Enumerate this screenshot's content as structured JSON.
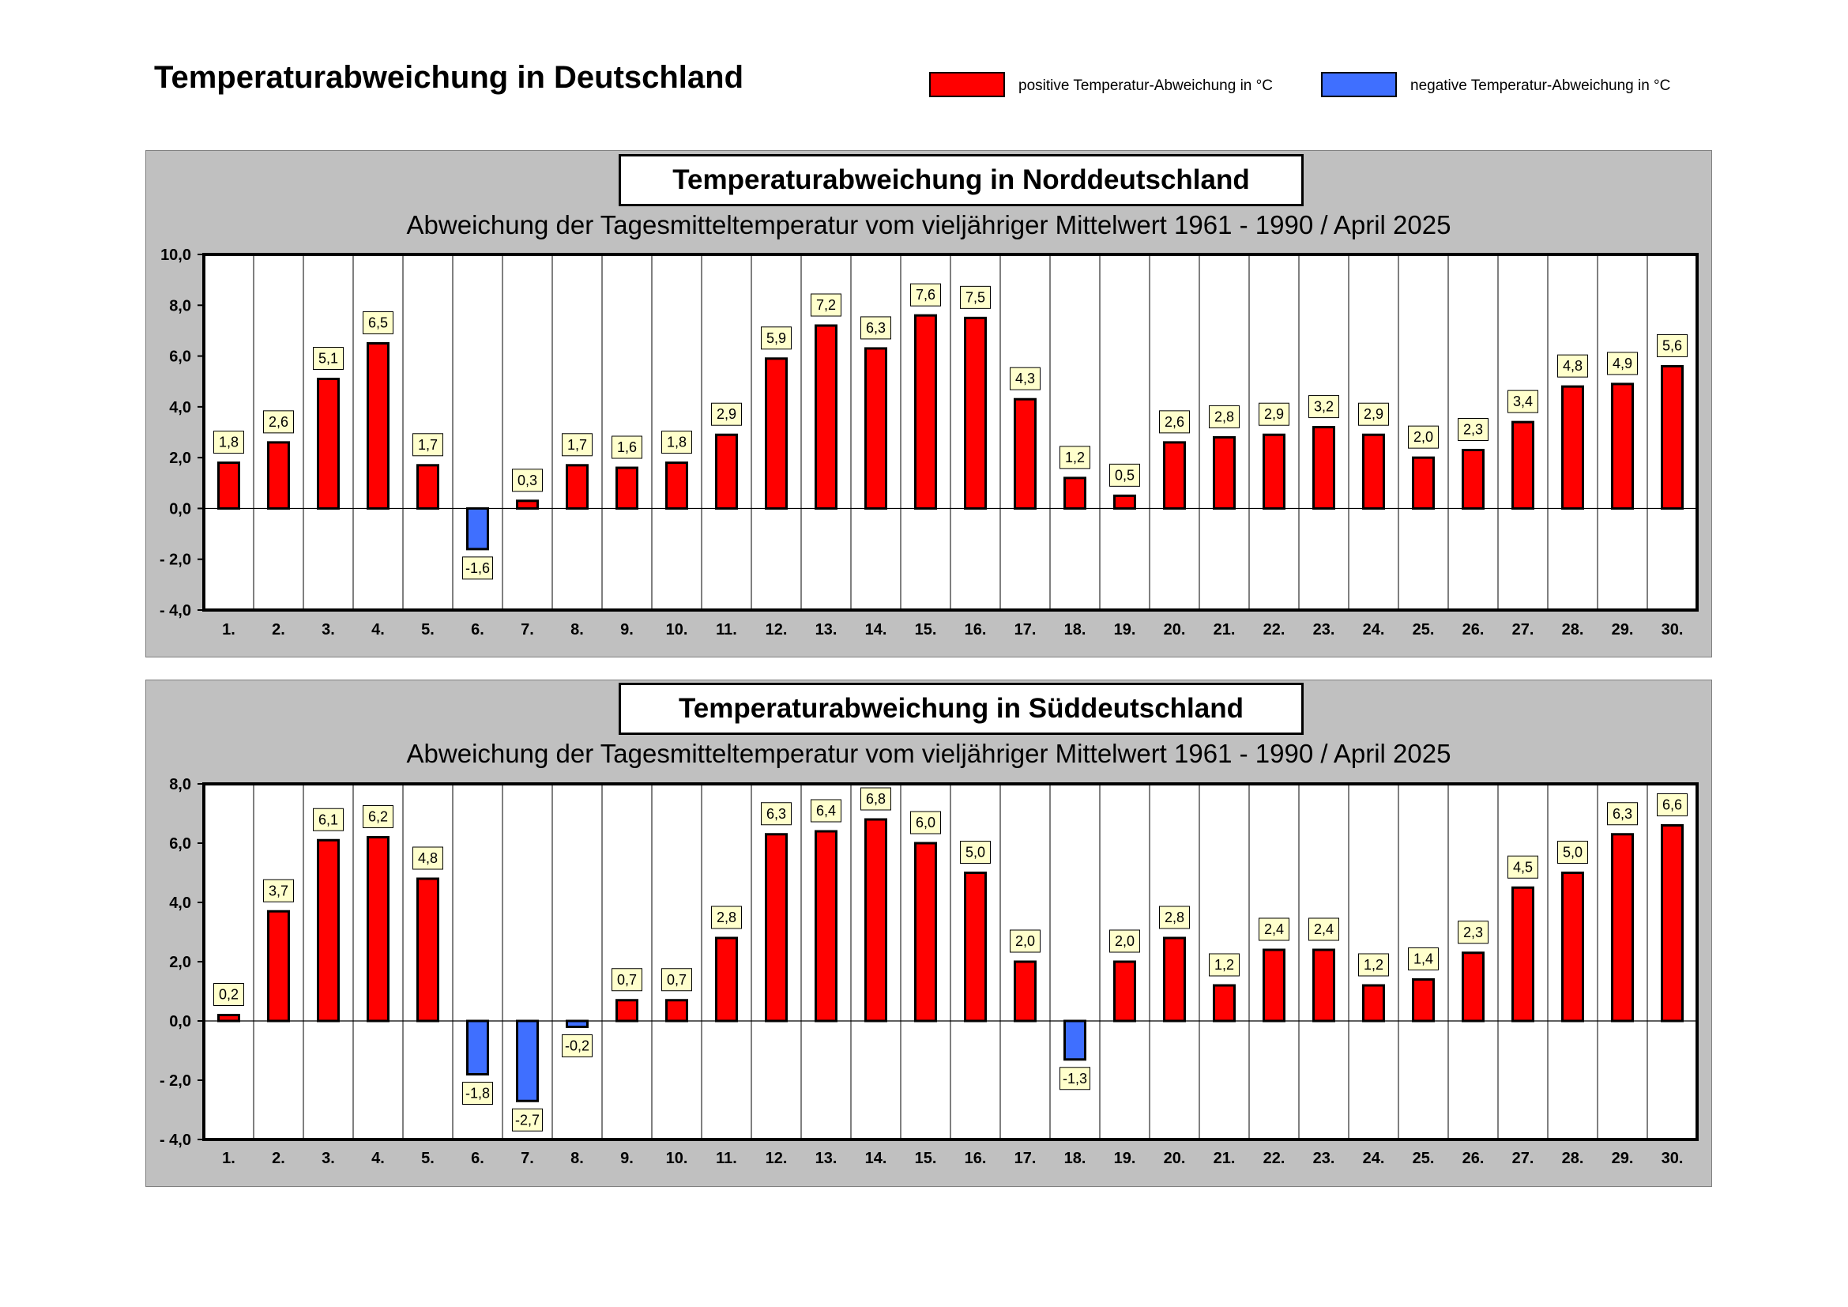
{
  "title": "Temperaturabweichung in Deutschland",
  "legend": {
    "positive_label": "positive Temperatur-Abweichung in °C",
    "negative_label": "negative Temperatur-Abweichung in °C",
    "positive_color": "#ff0000",
    "negative_color": "#3f6fff"
  },
  "chart_data": [
    {
      "type": "bar",
      "title": "Temperaturabweichung in Norddeutschland",
      "subtitle": "Abweichung der Tagesmitteltemperatur vom vieljähriger Mittelwert 1961 - 1990  /  April 2025",
      "categories": [
        "1.",
        "2.",
        "3.",
        "4.",
        "5.",
        "6.",
        "7.",
        "8.",
        "9.",
        "10.",
        "11.",
        "12.",
        "13.",
        "14.",
        "15.",
        "16.",
        "17.",
        "18.",
        "19.",
        "20.",
        "21.",
        "22.",
        "23.",
        "24.",
        "25.",
        "26.",
        "27.",
        "28.",
        "29.",
        "30."
      ],
      "values": [
        1.8,
        2.6,
        5.1,
        6.5,
        1.7,
        -1.6,
        0.3,
        1.7,
        1.6,
        1.8,
        2.9,
        5.9,
        7.2,
        6.3,
        7.6,
        7.5,
        4.3,
        1.2,
        0.5,
        2.6,
        2.8,
        2.9,
        3.2,
        2.9,
        2.0,
        2.3,
        3.4,
        4.8,
        4.9,
        5.6
      ],
      "value_labels": [
        "1,8",
        "2,6",
        "5,1",
        "6,5",
        "1,7",
        "-1,6",
        "0,3",
        "1,7",
        "1,6",
        "1,8",
        "2,9",
        "5,9",
        "7,2",
        "6,3",
        "7,6",
        "7,5",
        "4,3",
        "1,2",
        "0,5",
        "2,6",
        "2,8",
        "2,9",
        "3,2",
        "2,9",
        "2,0",
        "2,3",
        "3,4",
        "4,8",
        "4,9",
        "5,6"
      ],
      "ylim": [
        -4,
        10
      ],
      "yticks": [
        10,
        8,
        6,
        4,
        2,
        0,
        -2,
        -4
      ],
      "ytick_labels": [
        "10,0",
        "8,0",
        "6,0",
        "4,0",
        "2,0",
        "0,0",
        "- 2,0",
        "- 4,0"
      ],
      "xlabel": "",
      "ylabel": "",
      "grid": "vertical separators"
    },
    {
      "type": "bar",
      "title": "Temperaturabweichung in Süddeutschland",
      "subtitle": "Abweichung der Tagesmitteltemperatur vom vieljähriger Mittelwert 1961 - 1990  /  April 2025",
      "categories": [
        "1.",
        "2.",
        "3.",
        "4.",
        "5.",
        "6.",
        "7.",
        "8.",
        "9.",
        "10.",
        "11.",
        "12.",
        "13.",
        "14.",
        "15.",
        "16.",
        "17.",
        "18.",
        "19.",
        "20.",
        "21.",
        "22.",
        "23.",
        "24.",
        "25.",
        "26.",
        "27.",
        "28.",
        "29.",
        "30."
      ],
      "values": [
        0.2,
        3.7,
        6.1,
        6.2,
        4.8,
        -1.8,
        -2.7,
        -0.2,
        0.7,
        0.7,
        2.8,
        6.3,
        6.4,
        6.8,
        6.0,
        5.0,
        2.0,
        -1.3,
        2.0,
        2.8,
        1.2,
        2.4,
        2.4,
        1.2,
        1.4,
        2.3,
        4.5,
        5.0,
        6.3,
        6.6
      ],
      "value_labels": [
        "0,2",
        "3,7",
        "6,1",
        "6,2",
        "4,8",
        "-1,8",
        "-2,7",
        "-0,2",
        "0,7",
        "0,7",
        "2,8",
        "6,3",
        "6,4",
        "6,8",
        "6,0",
        "5,0",
        "2,0",
        "-1,3",
        "2,0",
        "2,8",
        "1,2",
        "2,4",
        "2,4",
        "1,2",
        "1,4",
        "2,3",
        "4,5",
        "5,0",
        "6,3",
        "6,6"
      ],
      "ylim": [
        -4,
        8
      ],
      "yticks": [
        8,
        6,
        4,
        2,
        0,
        -2,
        -4
      ],
      "ytick_labels": [
        "8,0",
        "6,0",
        "4,0",
        "2,0",
        "0,0",
        "- 2,0",
        "- 4,0"
      ],
      "xlabel": "",
      "ylabel": "",
      "grid": "vertical separators"
    }
  ]
}
